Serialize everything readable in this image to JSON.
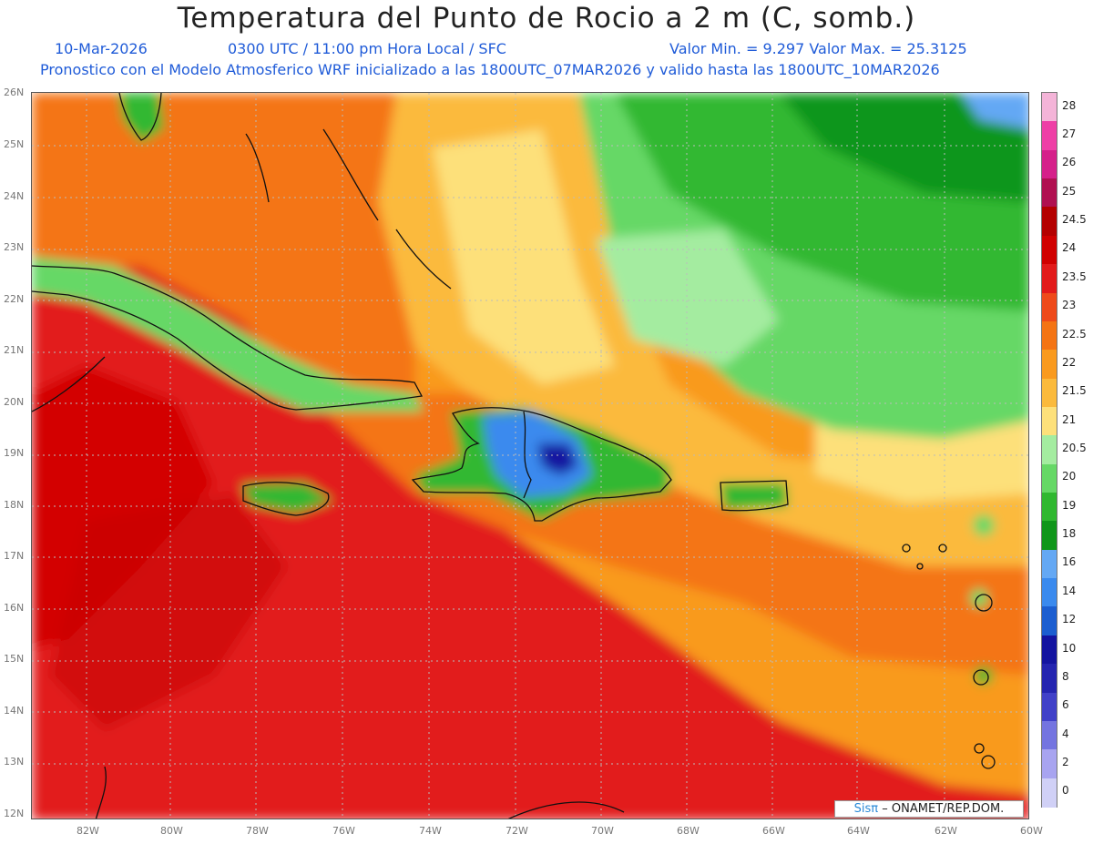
{
  "header": {
    "title": "Temperatura del Punto de Rocio a 2 m (C, somb.)",
    "date": "10-Mar-2026",
    "time": "0300 UTC / 11:00 pm Hora Local / SFC",
    "minmax": "Valor Min. = 9.297  Valor Max. = 25.3125",
    "model": "Pronostico con el Modelo Atmosferico WRF inicializado a las 1800UTC_07MAR2026 y valido hasta las  1800UTC_10MAR2026"
  },
  "axes": {
    "lat_labels": [
      "26N",
      "25N",
      "24N",
      "23N",
      "22N",
      "21N",
      "20N",
      "19N",
      "18N",
      "17N",
      "16N",
      "15N",
      "14N",
      "13N",
      "12N"
    ],
    "lon_labels": [
      "82W",
      "80W",
      "78W",
      "76W",
      "74W",
      "72W",
      "70W",
      "68W",
      "66W",
      "64W",
      "62W",
      "60W"
    ]
  },
  "colorbar": {
    "labels": [
      "28",
      "27",
      "26",
      "25",
      "24.5",
      "24",
      "23.5",
      "23",
      "22.5",
      "22",
      "21.5",
      "21",
      "20.5",
      "20",
      "19",
      "18",
      "16",
      "14",
      "12",
      "10",
      "8",
      "6",
      "4",
      "2",
      "0"
    ],
    "colors": [
      "#f4b4d8",
      "#ee3fa6",
      "#d5208a",
      "#b01050",
      "#b40000",
      "#d00000",
      "#e21a1a",
      "#ee4a1a",
      "#f47414",
      "#f99a1e",
      "#fbba3c",
      "#fde07a",
      "#a4eca0",
      "#66d866",
      "#30b830",
      "#10961a",
      "#64a8f4",
      "#3a8aee",
      "#1c5ed0",
      "#1414a0",
      "#2424b0",
      "#4040c8",
      "#7474e0",
      "#a8a4f0",
      "#d0d0f6"
    ]
  },
  "map": {
    "lon_range": [
      -83.2,
      -60
    ],
    "lat_range": [
      11.9,
      26.1
    ],
    "land_color": "#111111"
  },
  "credit": {
    "logo": "Sisπ",
    "text": "– ONAMET/REP.DOM."
  }
}
